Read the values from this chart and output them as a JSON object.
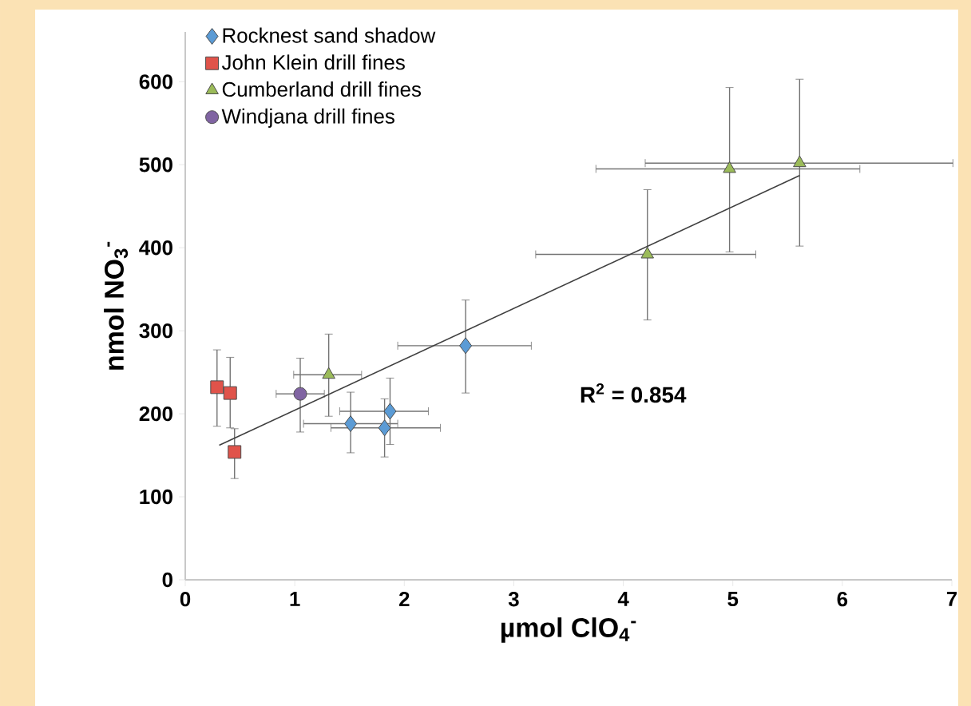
{
  "chart_data": {
    "type": "scatter",
    "xlabel": "µmol ClO$_{4}$$^{-}$",
    "ylabel": "nmol NO$_{3}$$^{-}$",
    "xlim": [
      0,
      7
    ],
    "ylim": [
      0,
      660
    ],
    "xticks": [
      0,
      1,
      2,
      3,
      4,
      5,
      6,
      7
    ],
    "yticks": [
      0,
      100,
      200,
      300,
      400,
      500,
      600
    ],
    "grid": false,
    "legend": "top left",
    "annotations": [
      "R$^{2}$ = 0.854"
    ],
    "series": [
      {
        "name": "Rocknest sand shadow",
        "color": "#5b9bd5",
        "marker": "diamond",
        "x": [
          1.51,
          1.87,
          1.82,
          2.56
        ],
        "values": [
          188,
          203,
          183,
          282
        ],
        "errors": [
          [
            153,
            226
          ],
          [
            163,
            243
          ],
          [
            148,
            218
          ],
          [
            225,
            337
          ]
        ],
        "xerrors": [
          [
            1.08,
            1.94
          ],
          [
            1.41,
            2.22
          ],
          [
            1.33,
            2.33
          ],
          [
            1.94,
            3.16
          ]
        ]
      },
      {
        "name": "John Klein drill fines",
        "color": "#e0534a",
        "marker": "square",
        "x": [
          0.29,
          0.41,
          0.45
        ],
        "values": [
          232,
          225,
          154
        ],
        "errors": [
          [
            185,
            277
          ],
          [
            183,
            268
          ],
          [
            122,
            182
          ]
        ]
      },
      {
        "name": "Cumberland drill fines",
        "color": "#9bbb59",
        "marker": "triangle",
        "x": [
          1.31,
          4.22,
          4.97,
          5.61
        ],
        "values": [
          247,
          392,
          495,
          502
        ],
        "errors": [
          [
            197,
            296
          ],
          [
            313,
            470
          ],
          [
            395,
            593
          ],
          [
            402,
            603
          ]
        ],
        "xerrors": [
          [
            0.99,
            1.61
          ],
          [
            3.2,
            5.21
          ],
          [
            3.75,
            6.16
          ],
          [
            4.2,
            7.01
          ]
        ]
      },
      {
        "name": "Windjana drill fines",
        "color": "#8064a2",
        "marker": "circle",
        "x": [
          1.05
        ],
        "values": [
          224
        ],
        "errors": [
          [
            178,
            267
          ]
        ],
        "xerrors": [
          [
            0.83,
            1.27
          ]
        ]
      },
      {
        "type": "line",
        "color": "#404040",
        "marker": "none",
        "x": [
          0.31,
          5.61
        ],
        "values": [
          162,
          487
        ]
      }
    ]
  }
}
